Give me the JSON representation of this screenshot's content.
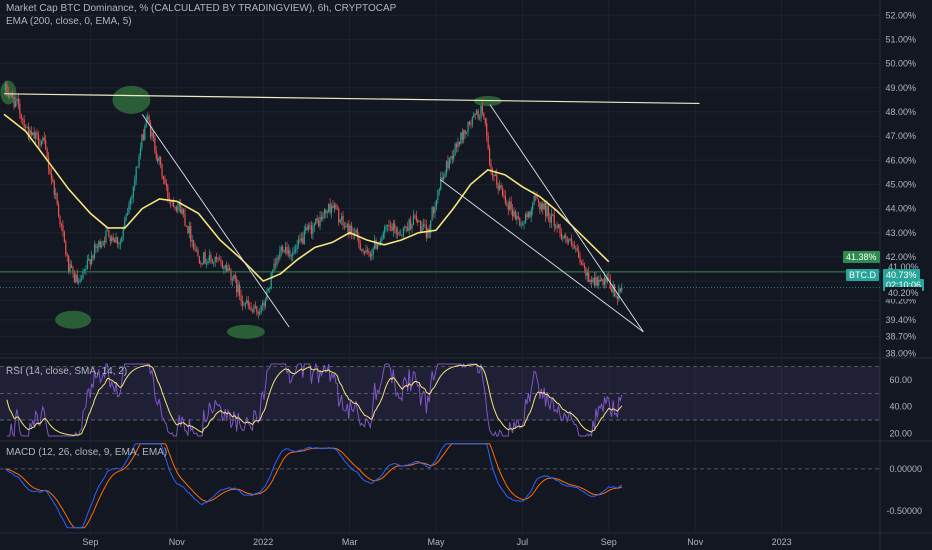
{
  "header": {
    "title": "Market Cap BTC Dominance, % (CALCULATED BY TRADINGVIEW), 6h, CRYPTOCAP",
    "ema_legend": "EMA (200, close, 0, EMA, 5)"
  },
  "rsi_legend": "RSI (14, close, SMA, 14, 2)",
  "macd_legend": "MACD (12, 26, close, 9, EMA, EMA)",
  "badges": {
    "resistance_value": "41.38%",
    "symbol": "BTC.D",
    "price": "40.73%",
    "countdown": "02:10:06",
    "ema_value": "41.00%",
    "low_value": "40.20%"
  },
  "colors": {
    "background": "#131722",
    "up_candle": "#26a69a",
    "down_candle": "#ef5350",
    "ema": "#f5e57a",
    "trendline": "#e0e3eb",
    "horizontal_line": "#2f8a4f",
    "rsi_line": "#7e57c2",
    "rsi_ma": "#f5e57a",
    "macd_line": "#2962ff",
    "signal_line": "#ff6d00",
    "highlight": "#2f6b3a"
  },
  "chart_data": [
    {
      "type": "candlestick",
      "title": "Market Cap BTC Dominance, %",
      "ylabel": "",
      "ylim": [
        37.9,
        52.3
      ],
      "yticks": [
        "52.00%",
        "51.00%",
        "50.00%",
        "49.00%",
        "48.00%",
        "47.00%",
        "46.00%",
        "45.00%",
        "44.00%",
        "43.00%",
        "42.00%",
        "41.00%",
        "40.20%",
        "39.40%",
        "38.70%",
        "38.00%"
      ],
      "ytick_values": [
        52.0,
        51.0,
        50.0,
        49.0,
        48.0,
        47.0,
        46.0,
        45.0,
        44.0,
        43.0,
        42.0,
        41.0,
        40.2,
        39.4,
        38.7,
        38.0
      ],
      "xticks": [
        "Sep",
        "Nov",
        "2022",
        "Mar",
        "May",
        "Jul",
        "Sep",
        "Nov",
        "2023"
      ],
      "xtick_months": [
        2.0,
        4.0,
        6.0,
        8.0,
        10.0,
        12.0,
        14.0,
        16.0,
        18.0
      ],
      "month_axis": "months since 2021-07-01",
      "price_path": [
        [
          0.05,
          48.9
        ],
        [
          0.3,
          48.3
        ],
        [
          0.6,
          47.0
        ],
        [
          0.9,
          46.8
        ],
        [
          1.2,
          44.5
        ],
        [
          1.5,
          41.5
        ],
        [
          1.75,
          40.8
        ],
        [
          2.0,
          42.0
        ],
        [
          2.4,
          43.0
        ],
        [
          2.7,
          42.6
        ],
        [
          3.0,
          45.0
        ],
        [
          3.3,
          47.8
        ],
        [
          3.5,
          46.5
        ],
        [
          3.8,
          44.5
        ],
        [
          4.1,
          44.0
        ],
        [
          4.5,
          42.0
        ],
        [
          4.9,
          41.8
        ],
        [
          5.2,
          41.5
        ],
        [
          5.5,
          40.3
        ],
        [
          5.75,
          39.7
        ],
        [
          6.0,
          39.9
        ],
        [
          6.2,
          41.2
        ],
        [
          6.45,
          42.5
        ],
        [
          6.7,
          42.1
        ],
        [
          7.0,
          43.0
        ],
        [
          7.3,
          43.5
        ],
        [
          7.6,
          44.2
        ],
        [
          7.85,
          43.3
        ],
        [
          8.1,
          43.0
        ],
        [
          8.4,
          42.0
        ],
        [
          8.6,
          42.5
        ],
        [
          8.9,
          43.2
        ],
        [
          9.2,
          43.0
        ],
        [
          9.5,
          43.6
        ],
        [
          9.8,
          42.9
        ],
        [
          10.0,
          44.5
        ],
        [
          10.3,
          46.0
        ],
        [
          10.6,
          47.0
        ],
        [
          10.9,
          47.8
        ],
        [
          11.1,
          48.1
        ],
        [
          11.25,
          45.5
        ],
        [
          11.5,
          44.8
        ],
        [
          11.8,
          43.8
        ],
        [
          12.0,
          43.3
        ],
        [
          12.3,
          44.4
        ],
        [
          12.6,
          43.8
        ],
        [
          12.9,
          43.0
        ],
        [
          13.2,
          42.3
        ],
        [
          13.5,
          41.2
        ],
        [
          13.8,
          40.9
        ],
        [
          14.0,
          40.9
        ],
        [
          14.2,
          40.3
        ],
        [
          14.3,
          40.73
        ]
      ],
      "ema_path": [
        [
          0.0,
          47.9
        ],
        [
          0.5,
          47.2
        ],
        [
          1.0,
          46.0
        ],
        [
          1.5,
          44.8
        ],
        [
          2.0,
          43.8
        ],
        [
          2.4,
          43.2
        ],
        [
          2.8,
          43.2
        ],
        [
          3.2,
          44.0
        ],
        [
          3.6,
          44.4
        ],
        [
          4.0,
          44.3
        ],
        [
          4.5,
          43.8
        ],
        [
          5.0,
          42.7
        ],
        [
          5.5,
          41.9
        ],
        [
          6.0,
          41.0
        ],
        [
          6.4,
          41.3
        ],
        [
          6.8,
          41.9
        ],
        [
          7.2,
          42.4
        ],
        [
          7.6,
          42.6
        ],
        [
          8.0,
          43.0
        ],
        [
          8.4,
          42.7
        ],
        [
          8.8,
          42.5
        ],
        [
          9.2,
          42.7
        ],
        [
          9.6,
          43.0
        ],
        [
          10.0,
          43.1
        ],
        [
          10.4,
          44.0
        ],
        [
          10.8,
          45.0
        ],
        [
          11.2,
          45.6
        ],
        [
          11.6,
          45.4
        ],
        [
          12.0,
          44.9
        ],
        [
          12.4,
          44.5
        ],
        [
          12.8,
          43.9
        ],
        [
          13.2,
          43.2
        ],
        [
          13.6,
          42.5
        ],
        [
          14.0,
          41.8
        ]
      ],
      "resistance_line": [
        [
          0.0,
          48.75
        ],
        [
          16.1,
          48.35
        ]
      ],
      "support_level": 41.38,
      "trendlines": [
        [
          [
            3.2,
            47.9
          ],
          [
            6.6,
            39.1
          ]
        ],
        [
          [
            10.1,
            45.2
          ],
          [
            14.8,
            38.9
          ]
        ],
        [
          [
            11.25,
            48.3
          ],
          [
            14.8,
            38.9
          ]
        ]
      ],
      "last_price": 40.73
    },
    {
      "type": "line",
      "title": "RSI (14, close, SMA, 14, 2)",
      "ylim": [
        15,
        75
      ],
      "yticks": [
        "60.00",
        "40.00",
        "20.00"
      ],
      "ytick_values": [
        60,
        40,
        20
      ],
      "bands": [
        70,
        50,
        30
      ]
    },
    {
      "type": "line",
      "title": "MACD (12, 26, close, 9, EMA, EMA)",
      "ylim": [
        -0.75,
        0.32
      ],
      "yticks": [
        "0.00000",
        "-0.50000"
      ],
      "ytick_values": [
        0.0,
        -0.5
      ],
      "zero_line": 0.0
    }
  ],
  "highlights": [
    {
      "label": "top-left"
    },
    {
      "label": "top-nov"
    },
    {
      "label": "top-jun"
    },
    {
      "label": "bottom-sep"
    },
    {
      "label": "bottom-jan"
    }
  ]
}
